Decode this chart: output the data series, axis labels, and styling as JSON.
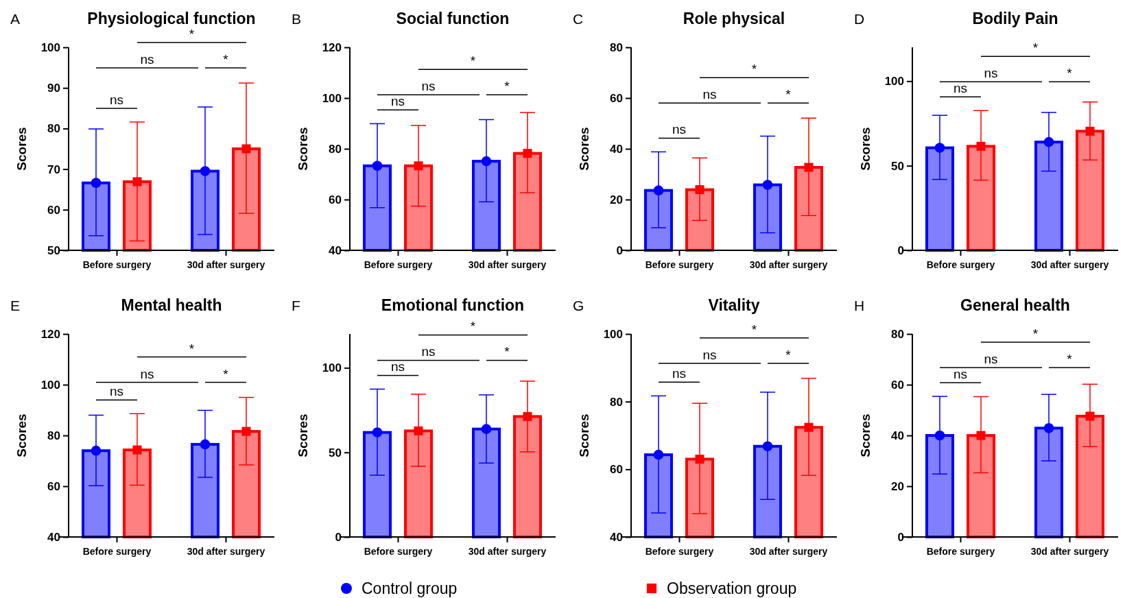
{
  "chart_data": [
    {
      "type": "bar",
      "title": "Physiological function",
      "ylabel": "Scores",
      "categories": [
        "Before surgery",
        "30d after surgery"
      ],
      "ylim": [
        50,
        100
      ],
      "yticks": [
        50,
        60,
        70,
        80,
        90,
        100
      ],
      "legend": "bottom",
      "annotations": [
        "A",
        "ns",
        "ns",
        "*",
        "*"
      ],
      "series": [
        {
          "color": "#0000ff",
          "values": [
            66.6,
            69.5
          ],
          "errors": [
            [
              53.6,
              79.9
            ],
            [
              53.9,
              85.3
            ]
          ]
        },
        {
          "color": "#ff0000",
          "values": [
            66.9,
            75.0
          ],
          "errors": [
            [
              52.3,
              81.6
            ],
            [
              59.1,
              91.2
            ]
          ]
        },
        {
          "type": "scatter",
          "name": "Control group",
          "color": "#0000ff",
          "marker": "circle",
          "x": [
            "Before surgery",
            "30d after surgery"
          ],
          "values": [
            66.6,
            69.5
          ]
        },
        {
          "type": "scatter",
          "name": "Observation group",
          "color": "#ff0000",
          "marker": "square",
          "x": [
            "Before surgery",
            "30d after surgery"
          ],
          "values": [
            66.9,
            75.0
          ]
        }
      ]
    },
    {
      "type": "bar",
      "title": "Social function",
      "ylabel": "Scores",
      "categories": [
        "Before surgery",
        "30d after surgery"
      ],
      "ylim": [
        40,
        120
      ],
      "yticks": [
        40,
        60,
        80,
        100,
        120
      ],
      "annotations": [
        "B",
        "ns",
        "ns",
        "*",
        "*"
      ],
      "series": [
        {
          "color": "#0000ff",
          "values": [
            73.3,
            75.1
          ],
          "errors": [
            [
              56.8,
              89.9
            ],
            [
              59.1,
              91.5
            ]
          ]
        },
        {
          "color": "#ff0000",
          "values": [
            73.3,
            78.2
          ],
          "errors": [
            [
              57.4,
              89.2
            ],
            [
              62.7,
              94.3
            ]
          ]
        },
        {
          "type": "scatter",
          "color": "#0000ff",
          "marker": "circle",
          "x": [
            "Before surgery",
            "30d after surgery"
          ],
          "values": [
            73.3,
            75.1
          ]
        },
        {
          "type": "scatter",
          "color": "#ff0000",
          "marker": "square",
          "x": [
            "Before surgery",
            "30d after surgery"
          ],
          "values": [
            73.3,
            78.2
          ]
        }
      ]
    },
    {
      "type": "bar",
      "title": "Role physical",
      "ylabel": "Scores",
      "categories": [
        "Before surgery",
        "30d after surgery"
      ],
      "ylim": [
        0,
        80
      ],
      "yticks": [
        0,
        20,
        40,
        60,
        80
      ],
      "annotations": [
        "C",
        "ns",
        "ns",
        "*",
        "*"
      ],
      "series": [
        {
          "color": "#0000ff",
          "values": [
            23.6,
            25.8
          ],
          "errors": [
            [
              8.9,
              38.8
            ],
            [
              6.9,
              45.0
            ]
          ]
        },
        {
          "color": "#ff0000",
          "values": [
            23.9,
            32.7
          ],
          "errors": [
            [
              11.8,
              36.4
            ],
            [
              13.7,
              52.1
            ]
          ]
        },
        {
          "type": "scatter",
          "color": "#0000ff",
          "marker": "circle",
          "x": [
            "Before surgery",
            "30d after surgery"
          ],
          "values": [
            23.6,
            25.8
          ]
        },
        {
          "type": "scatter",
          "color": "#ff0000",
          "marker": "square",
          "x": [
            "Before surgery",
            "30d after surgery"
          ],
          "values": [
            23.9,
            32.7
          ]
        }
      ]
    },
    {
      "type": "bar",
      "title": "Bodily Pain",
      "ylabel": "Scores",
      "categories": [
        "Before surgery",
        "30d after surgery"
      ],
      "ylim": [
        0,
        120
      ],
      "yticks": [
        0,
        50,
        100
      ],
      "annotations": [
        "D",
        "ns",
        "ns",
        "*",
        "*"
      ],
      "series": [
        {
          "color": "#0000ff",
          "values": [
            60.6,
            64.0
          ],
          "errors": [
            [
              41.9,
              79.8
            ],
            [
              46.8,
              81.5
            ]
          ]
        },
        {
          "color": "#ff0000",
          "values": [
            61.5,
            70.4
          ],
          "errors": [
            [
              41.5,
              82.6
            ],
            [
              53.4,
              87.7
            ]
          ]
        },
        {
          "type": "scatter",
          "color": "#0000ff",
          "marker": "circle",
          "x": [
            "Before surgery",
            "30d after surgery"
          ],
          "values": [
            60.6,
            64.0
          ]
        },
        {
          "type": "scatter",
          "color": "#ff0000",
          "marker": "square",
          "x": [
            "Before surgery",
            "30d after surgery"
          ],
          "values": [
            61.5,
            70.4
          ]
        }
      ]
    },
    {
      "type": "bar",
      "title": "Mental health",
      "ylabel": "Scores",
      "categories": [
        "Before surgery",
        "30d after surgery"
      ],
      "ylim": [
        40,
        120
      ],
      "yticks": [
        40,
        60,
        80,
        100,
        120
      ],
      "annotations": [
        "E",
        "ns",
        "ns",
        "*",
        "*"
      ],
      "series": [
        {
          "color": "#0000ff",
          "values": [
            74.0,
            76.5
          ],
          "errors": [
            [
              60.2,
              88.0
            ],
            [
              63.5,
              89.9
            ]
          ]
        },
        {
          "color": "#ff0000",
          "values": [
            74.3,
            81.6
          ],
          "errors": [
            [
              60.4,
              88.6
            ],
            [
              68.4,
              95.0
            ]
          ]
        },
        {
          "type": "scatter",
          "color": "#0000ff",
          "marker": "circle",
          "x": [
            "Before surgery",
            "30d after surgery"
          ],
          "values": [
            74.0,
            76.5
          ]
        },
        {
          "type": "scatter",
          "color": "#ff0000",
          "marker": "square",
          "x": [
            "Before surgery",
            "30d after surgery"
          ],
          "values": [
            74.3,
            81.6
          ]
        }
      ]
    },
    {
      "type": "bar",
      "title": "Emotional function",
      "ylabel": "Scores",
      "categories": [
        "Before surgery",
        "30d after surgery"
      ],
      "ylim": [
        0,
        120
      ],
      "yticks": [
        0,
        50,
        100
      ],
      "annotations": [
        "F",
        "ns",
        "ns",
        "*",
        "*"
      ],
      "series": [
        {
          "color": "#0000ff",
          "values": [
            61.8,
            63.8
          ],
          "errors": [
            [
              36.5,
              87.4
            ],
            [
              43.7,
              84.0
            ]
          ]
        },
        {
          "color": "#ff0000",
          "values": [
            62.7,
            71.2
          ],
          "errors": [
            [
              41.8,
              84.4
            ],
            [
              50.3,
              92.1
            ]
          ]
        },
        {
          "type": "scatter",
          "color": "#0000ff",
          "marker": "circle",
          "x": [
            "Before surgery",
            "30d after surgery"
          ],
          "values": [
            61.8,
            63.8
          ]
        },
        {
          "type": "scatter",
          "color": "#ff0000",
          "marker": "square",
          "x": [
            "Before surgery",
            "30d after surgery"
          ],
          "values": [
            62.7,
            71.2
          ]
        }
      ]
    },
    {
      "type": "bar",
      "title": "Vitality",
      "ylabel": "Scores",
      "categories": [
        "Before surgery",
        "30d after surgery"
      ],
      "ylim": [
        40,
        100
      ],
      "yticks": [
        40,
        60,
        80,
        100
      ],
      "annotations": [
        "G",
        "ns",
        "ns",
        "*",
        "*"
      ],
      "series": [
        {
          "color": "#0000ff",
          "values": [
            64.3,
            66.8
          ],
          "errors": [
            [
              47.1,
              81.7
            ],
            [
              51.1,
              82.8
            ]
          ]
        },
        {
          "color": "#ff0000",
          "values": [
            63.0,
            72.4
          ],
          "errors": [
            [
              46.9,
              79.5
            ],
            [
              58.2,
              86.9
            ]
          ]
        },
        {
          "type": "scatter",
          "color": "#0000ff",
          "marker": "circle",
          "x": [
            "Before surgery",
            "30d after surgery"
          ],
          "values": [
            64.3,
            66.8
          ]
        },
        {
          "type": "scatter",
          "color": "#ff0000",
          "marker": "square",
          "x": [
            "Before surgery",
            "30d after surgery"
          ],
          "values": [
            63.0,
            72.4
          ]
        }
      ]
    },
    {
      "type": "bar",
      "title": "General health",
      "ylabel": "Scores",
      "categories": [
        "Before surgery",
        "30d after surgery"
      ],
      "ylim": [
        0,
        80
      ],
      "yticks": [
        0,
        20,
        40,
        60,
        80
      ],
      "annotations": [
        "H",
        "ns",
        "ns",
        "*",
        "*"
      ],
      "series": [
        {
          "color": "#0000ff",
          "values": [
            40.0,
            42.9
          ],
          "errors": [
            [
              24.8,
              55.4
            ],
            [
              30.0,
              56.2
            ]
          ]
        },
        {
          "color": "#ff0000",
          "values": [
            40.0,
            47.6
          ],
          "errors": [
            [
              25.3,
              55.3
            ],
            [
              35.6,
              60.2
            ]
          ]
        },
        {
          "type": "scatter",
          "color": "#0000ff",
          "marker": "circle",
          "x": [
            "Before surgery",
            "30d after surgery"
          ],
          "values": [
            40.0,
            42.9
          ]
        },
        {
          "type": "scatter",
          "color": "#ff0000",
          "marker": "square",
          "x": [
            "Before surgery",
            "30d after surgery"
          ],
          "values": [
            40.0,
            47.6
          ]
        }
      ]
    }
  ]
}
